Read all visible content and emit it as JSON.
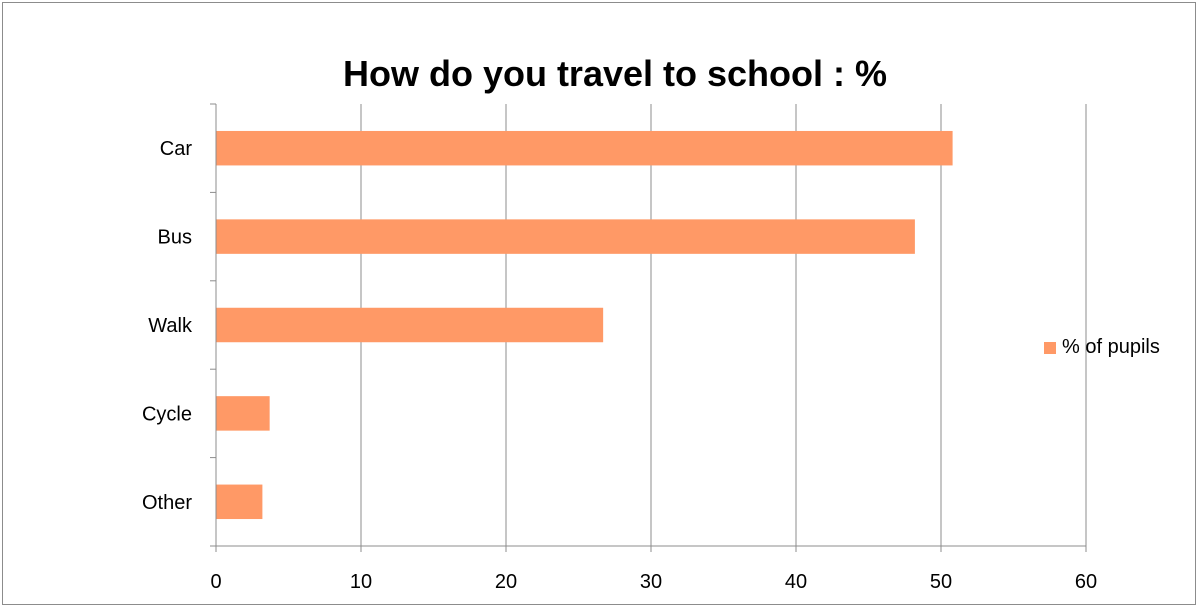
{
  "chart_data": {
    "type": "bar",
    "orientation": "horizontal",
    "title": "How do you travel to school : %",
    "categories": [
      "Car",
      "Bus",
      "Walk",
      "Cycle",
      "Other"
    ],
    "series": [
      {
        "name": "% of pupils",
        "values": [
          50.8,
          48.2,
          26.7,
          3.7,
          3.2
        ],
        "color": "#FF9966"
      }
    ],
    "xlim": [
      0,
      60
    ],
    "x_ticks": [
      0,
      10,
      20,
      30,
      40,
      50,
      60
    ],
    "grid": "vertical",
    "legend_position": "right",
    "gridline_color": "#8C8C8C",
    "axis_color": "#8C8C8C"
  }
}
